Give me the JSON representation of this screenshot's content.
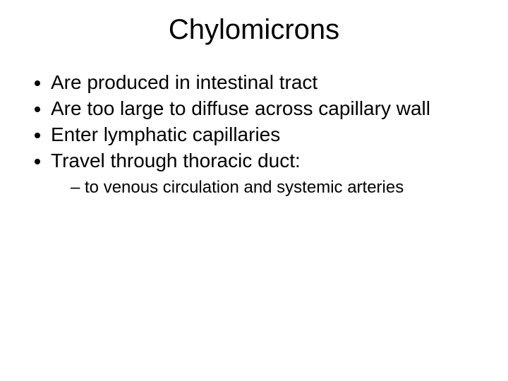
{
  "slide": {
    "title": "Chylomicrons",
    "bullets": [
      "Are produced in intestinal tract",
      "Are too large to diffuse across capillary wall",
      "Enter lymphatic capillaries",
      "Travel through thoracic duct:"
    ],
    "sub_bullets": [
      "to venous circulation and systemic arteries"
    ],
    "background_color": "#ffffff",
    "text_color": "#000000",
    "title_fontsize": 40,
    "bullet_fontsize": 28,
    "sub_bullet_fontsize": 24,
    "font_family": "Arial"
  }
}
